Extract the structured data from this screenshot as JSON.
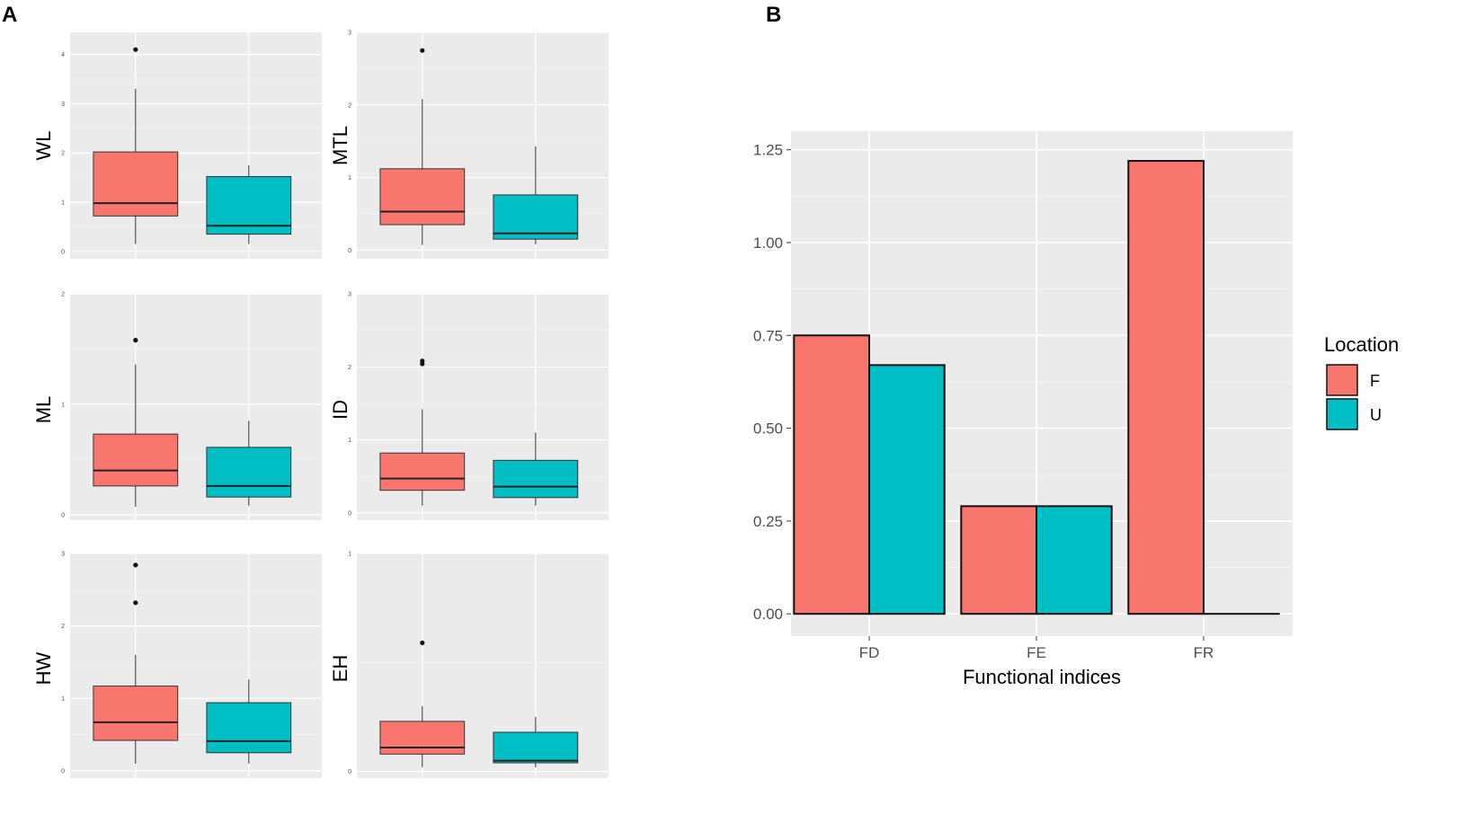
{
  "panel_labels": {
    "a": "A",
    "b": "B"
  },
  "colors": {
    "F": "#F8766D",
    "U": "#00BFC4",
    "panel_bg": "#EBEBEB",
    "grid": "#FFFFFF",
    "outline": "#333333"
  },
  "chart_data": [
    {
      "type": "box",
      "panel": "A",
      "ylabel": "WL",
      "yticks": [
        "0",
        "1",
        "2",
        "3",
        "4"
      ],
      "ylim": [
        -0.15,
        4.45
      ],
      "groups": [
        {
          "name": "F",
          "min": 0.15,
          "q1": 0.72,
          "median": 0.98,
          "q3": 2.02,
          "max": 3.3,
          "outliers": [
            4.1
          ]
        },
        {
          "name": "U",
          "min": 0.15,
          "q1": 0.35,
          "median": 0.52,
          "q3": 1.52,
          "max": 1.75,
          "outliers": []
        }
      ]
    },
    {
      "type": "box",
      "panel": "A",
      "ylabel": "MTL",
      "yticks": [
        "0",
        "1",
        "2",
        "3"
      ],
      "ylim": [
        -0.12,
        3.0
      ],
      "groups": [
        {
          "name": "F",
          "min": 0.07,
          "q1": 0.35,
          "median": 0.53,
          "q3": 1.12,
          "max": 2.08,
          "outliers": [
            2.75
          ]
        },
        {
          "name": "U",
          "min": 0.08,
          "q1": 0.15,
          "median": 0.23,
          "q3": 0.76,
          "max": 1.43,
          "outliers": []
        }
      ]
    },
    {
      "type": "box",
      "panel": "A",
      "ylabel": "ML",
      "yticks": [
        "0",
        "1",
        "2"
      ],
      "ylim": [
        -0.05,
        2.0
      ],
      "groups": [
        {
          "name": "F",
          "min": 0.07,
          "q1": 0.26,
          "median": 0.4,
          "q3": 0.73,
          "max": 1.36,
          "outliers": [
            1.58
          ]
        },
        {
          "name": "U",
          "min": 0.08,
          "q1": 0.16,
          "median": 0.26,
          "q3": 0.61,
          "max": 0.85,
          "outliers": []
        }
      ]
    },
    {
      "type": "box",
      "panel": "A",
      "ylabel": "ID",
      "yticks": [
        "0",
        "1",
        "2",
        "3"
      ],
      "ylim": [
        -0.1,
        3.0
      ],
      "groups": [
        {
          "name": "F",
          "min": 0.1,
          "q1": 0.31,
          "median": 0.47,
          "q3": 0.82,
          "max": 1.42,
          "outliers": [
            2.04,
            2.08
          ]
        },
        {
          "name": "U",
          "min": 0.1,
          "q1": 0.21,
          "median": 0.36,
          "q3": 0.72,
          "max": 1.1,
          "outliers": []
        }
      ]
    },
    {
      "type": "box",
      "panel": "A",
      "ylabel": "HW",
      "yticks": [
        "0",
        "1",
        "2",
        "3"
      ],
      "ylim": [
        -0.1,
        3.0
      ],
      "groups": [
        {
          "name": "F",
          "min": 0.1,
          "q1": 0.42,
          "median": 0.67,
          "q3": 1.17,
          "max": 1.6,
          "outliers": [
            2.32,
            2.84
          ]
        },
        {
          "name": "U",
          "min": 0.1,
          "q1": 0.25,
          "median": 0.41,
          "q3": 0.94,
          "max": 1.26,
          "outliers": []
        }
      ]
    },
    {
      "type": "box",
      "panel": "A",
      "ylabel": "EH",
      "yticks": [
        "0",
        "1"
      ],
      "ylim": [
        -0.03,
        1.0
      ],
      "groups": [
        {
          "name": "F",
          "min": 0.02,
          "q1": 0.08,
          "median": 0.11,
          "q3": 0.23,
          "max": 0.3,
          "outliers": [
            0.59
          ]
        },
        {
          "name": "U",
          "min": 0.02,
          "q1": 0.04,
          "median": 0.05,
          "q3": 0.18,
          "max": 0.25,
          "outliers": []
        }
      ]
    },
    {
      "type": "bar",
      "panel": "B",
      "categories": [
        "FD",
        "FE",
        "FR"
      ],
      "series": [
        {
          "name": "F",
          "values": [
            0.75,
            0.29,
            1.22
          ]
        },
        {
          "name": "U",
          "values": [
            0.67,
            0.29,
            0.0
          ]
        }
      ],
      "yticks": [
        "0.00",
        "0.25",
        "0.50",
        "0.75",
        "1.00",
        "1.25"
      ],
      "ylim": [
        -0.06,
        1.3
      ],
      "xlabel": "Functional indices",
      "ylabel": "",
      "legend": {
        "title": "Location",
        "entries": [
          "F",
          "U"
        ],
        "position": "right"
      }
    }
  ]
}
